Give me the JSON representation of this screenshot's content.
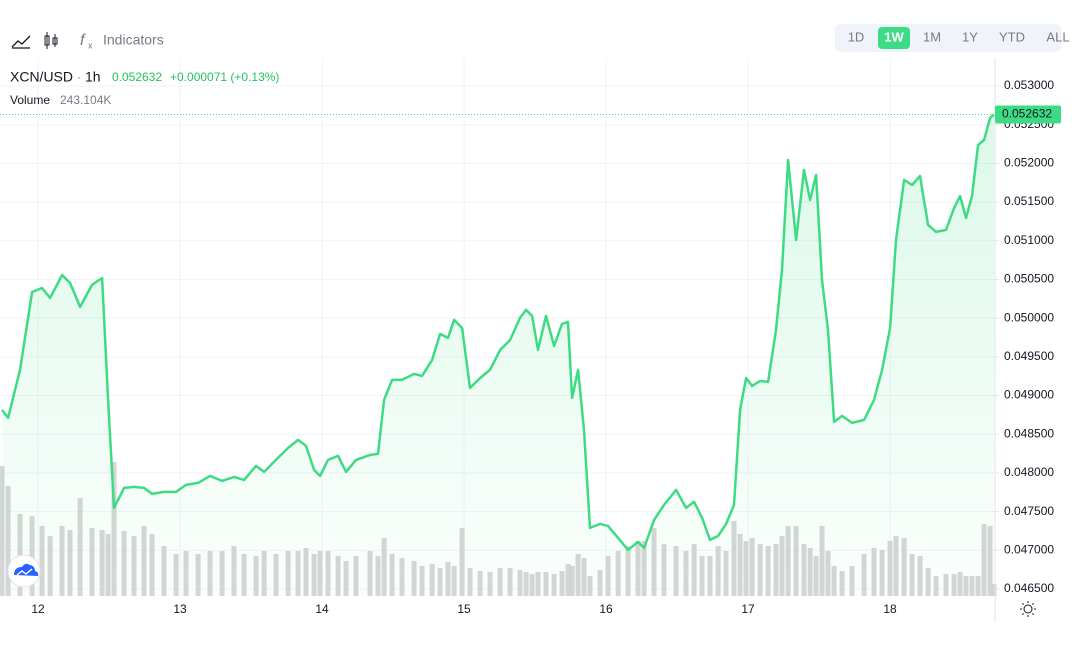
{
  "toolbar": {
    "indicators": "Indicators",
    "ranges": [
      "1D",
      "1W",
      "1M",
      "1Y",
      "YTD",
      "ALL"
    ],
    "active_range": 1
  },
  "chart_data": {
    "type": "line",
    "symbol": "XCN/USD",
    "header_separator": "·",
    "interval": "1h",
    "last_price_label": "0.052632",
    "change_label": "+0.000071 (+0.13%)",
    "x": [
      11.746,
      11.789,
      11.873,
      11.958,
      12.028,
      12.085,
      12.169,
      12.225,
      12.296,
      12.38,
      12.451,
      12.493,
      12.535,
      12.606,
      12.676,
      12.746,
      12.803,
      12.887,
      12.972,
      13.042,
      13.127,
      13.211,
      13.296,
      13.38,
      13.451,
      13.535,
      13.592,
      13.676,
      13.761,
      13.831,
      13.887,
      13.944,
      13.986,
      14.042,
      14.113,
      14.169,
      14.239,
      14.338,
      14.394,
      14.437,
      14.493,
      14.563,
      14.648,
      14.704,
      14.775,
      14.831,
      14.887,
      14.93,
      14.986,
      15.042,
      15.113,
      15.183,
      15.254,
      15.324,
      15.394,
      15.437,
      15.479,
      15.521,
      15.577,
      15.634,
      15.69,
      15.732,
      15.761,
      15.803,
      15.845,
      15.887,
      15.958,
      16.014,
      16.085,
      16.155,
      16.225,
      16.268,
      16.338,
      16.408,
      16.493,
      16.563,
      16.62,
      16.676,
      16.732,
      16.789,
      16.845,
      16.901,
      16.944,
      16.986,
      17.028,
      17.085,
      17.141,
      17.197,
      17.239,
      17.282,
      17.338,
      17.394,
      17.437,
      17.479,
      17.521,
      17.563,
      17.606,
      17.662,
      17.732,
      17.817,
      17.887,
      17.944,
      18.0,
      18.042,
      18.099,
      18.155,
      18.211,
      18.268,
      18.324,
      18.394,
      18.451,
      18.493,
      18.535,
      18.577,
      18.62,
      18.662,
      18.704,
      18.732
    ],
    "xlim": [
      11.732,
      18.739
    ],
    "xticks": [
      {
        "value": 12,
        "label": "12"
      },
      {
        "value": 13,
        "label": "13"
      },
      {
        "value": 14,
        "label": "14"
      },
      {
        "value": 15,
        "label": "15"
      },
      {
        "value": 16,
        "label": "16"
      },
      {
        "value": 17,
        "label": "17"
      },
      {
        "value": 18,
        "label": "18"
      }
    ],
    "ylim": [
      0.046409,
      0.053362
    ],
    "yticks": [
      {
        "value": 0.053,
        "label": "0.053000"
      },
      {
        "value": 0.0525,
        "label": "0.052500"
      },
      {
        "value": 0.052,
        "label": "0.052000"
      },
      {
        "value": 0.0515,
        "label": "0.051500"
      },
      {
        "value": 0.051,
        "label": "0.051000"
      },
      {
        "value": 0.0505,
        "label": "0.050500"
      },
      {
        "value": 0.05,
        "label": "0.050000"
      },
      {
        "value": 0.0495,
        "label": "0.049500"
      },
      {
        "value": 0.049,
        "label": "0.049000"
      },
      {
        "value": 0.0485,
        "label": "0.048500"
      },
      {
        "value": 0.048,
        "label": "0.048000"
      },
      {
        "value": 0.0475,
        "label": "0.047500"
      },
      {
        "value": 0.047,
        "label": "0.047000"
      },
      {
        "value": 0.0465,
        "label": "0.046500"
      }
    ],
    "grid": true,
    "series": [
      {
        "name": "XCN/USD",
        "color": "#3ddc84",
        "values": [
          0.048814,
          0.048711,
          0.049331,
          0.050338,
          0.05039,
          0.050261,
          0.050558,
          0.050455,
          0.050145,
          0.050429,
          0.050519,
          0.048943,
          0.047548,
          0.047806,
          0.047819,
          0.047806,
          0.047729,
          0.047754,
          0.047754,
          0.047845,
          0.047871,
          0.047961,
          0.047897,
          0.047948,
          0.04791,
          0.04809,
          0.048013,
          0.048168,
          0.048323,
          0.048426,
          0.048349,
          0.048039,
          0.047961,
          0.048168,
          0.04822,
          0.048013,
          0.048168,
          0.048233,
          0.048245,
          0.048943,
          0.049202,
          0.049202,
          0.049279,
          0.049253,
          0.04946,
          0.049796,
          0.049744,
          0.049977,
          0.049873,
          0.049098,
          0.049227,
          0.049331,
          0.049589,
          0.049718,
          0.050003,
          0.050106,
          0.050028,
          0.049589,
          0.050028,
          0.049641,
          0.049925,
          0.049951,
          0.048969,
          0.049331,
          0.048556,
          0.047289,
          0.047341,
          0.047315,
          0.04716,
          0.047005,
          0.047108,
          0.047031,
          0.047393,
          0.047587,
          0.04778,
          0.047548,
          0.047625,
          0.047419,
          0.047134,
          0.047186,
          0.047341,
          0.047587,
          0.048814,
          0.049227,
          0.049124,
          0.049189,
          0.049176,
          0.049848,
          0.050623,
          0.052044,
          0.05101,
          0.051915,
          0.051527,
          0.05185,
          0.050494,
          0.049848,
          0.048659,
          0.048736,
          0.048646,
          0.048685,
          0.048943,
          0.049331,
          0.049873,
          0.05101,
          0.051786,
          0.051721,
          0.051837,
          0.051204,
          0.051114,
          0.05114,
          0.051424,
          0.051579,
          0.051295,
          0.051579,
          0.052238,
          0.052302,
          0.052587,
          0.052632
        ]
      }
    ],
    "volume": {
      "name": "Volume",
      "value_label": "243.104K",
      "color": "#cfcfcf",
      "ylim": [
        0,
        6000
      ],
      "values": [
        2600,
        2200,
        1640,
        1600,
        1400,
        1200,
        1400,
        1320,
        1960,
        1360,
        1320,
        1240,
        2680,
        1300,
        1200,
        1400,
        1240,
        1000,
        840,
        900,
        840,
        900,
        900,
        1000,
        840,
        800,
        900,
        840,
        900,
        900,
        960,
        840,
        900,
        900,
        800,
        700,
        800,
        900,
        800,
        1160,
        840,
        760,
        700,
        600,
        640,
        560,
        680,
        600,
        1360,
        560,
        500,
        480,
        560,
        560,
        520,
        480,
        440,
        480,
        480,
        440,
        500,
        640,
        600,
        840,
        760,
        400,
        520,
        800,
        900,
        1000,
        1100,
        1100,
        1360,
        1040,
        1000,
        900,
        1040,
        800,
        800,
        1000,
        900,
        1500,
        1240,
        1100,
        1160,
        1040,
        1000,
        1040,
        1200,
        1400,
        1400,
        1040,
        960,
        800,
        1400,
        900,
        600,
        500,
        600,
        840,
        960,
        920,
        1100,
        1200,
        1160,
        840,
        800,
        560,
        400,
        440,
        440,
        480,
        400,
        400,
        400,
        1440,
        1400,
        243.104
      ]
    }
  }
}
